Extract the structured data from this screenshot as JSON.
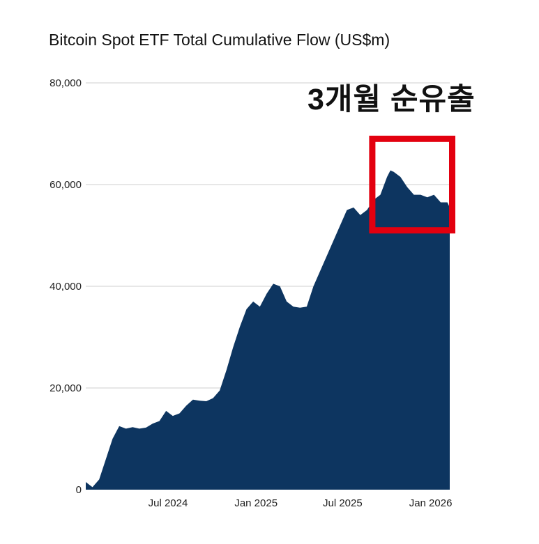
{
  "chart_data": {
    "type": "area",
    "title": "Bitcoin Spot ETF Total Cumulative Flow (US$m)",
    "annotation": "3개월 순유출",
    "xlabel": "",
    "ylabel": "",
    "ylim": [
      0,
      80000
    ],
    "yticks": [
      0,
      20000,
      40000,
      60000,
      80000
    ],
    "ytick_labels": [
      "0",
      "20,000",
      "40,000",
      "60,000",
      "80,000"
    ],
    "xtick_labels": [
      "Jul 2024",
      "Jan 2025",
      "Jul 2025",
      "Jan 2026"
    ],
    "xticks_iso": [
      "2024-07-01",
      "2025-01-01",
      "2025-07-01",
      "2026-01-01"
    ],
    "x_range": [
      "2024-01-11",
      "2026-02-10"
    ],
    "grid": true,
    "legend": "none",
    "highlight_box": {
      "from": "2025-09-01",
      "to": "2026-02-15",
      "y_from": 51000,
      "y_to": 69000
    },
    "series": [
      {
        "x": [
          "2024-01-11",
          "2024-01-25",
          "2024-02-08",
          "2024-02-22",
          "2024-03-07",
          "2024-03-21",
          "2024-04-04",
          "2024-04-18",
          "2024-05-02",
          "2024-05-16",
          "2024-05-30",
          "2024-06-13",
          "2024-06-27",
          "2024-07-11",
          "2024-07-25",
          "2024-08-08",
          "2024-08-22",
          "2024-09-05",
          "2024-09-19",
          "2024-10-03",
          "2024-10-17",
          "2024-10-31",
          "2024-11-14",
          "2024-11-28",
          "2024-12-12",
          "2024-12-26",
          "2025-01-09",
          "2025-01-23",
          "2025-02-06",
          "2025-02-20",
          "2025-03-06",
          "2025-03-20",
          "2025-04-03",
          "2025-04-17",
          "2025-05-01",
          "2025-05-15",
          "2025-05-29",
          "2025-06-12",
          "2025-06-26",
          "2025-07-10",
          "2025-07-24",
          "2025-08-07",
          "2025-08-21",
          "2025-09-04",
          "2025-09-18",
          "2025-10-02",
          "2025-10-09",
          "2025-10-16",
          "2025-10-30",
          "2025-11-13",
          "2025-11-27",
          "2025-12-11",
          "2025-12-25",
          "2026-01-08",
          "2026-01-22",
          "2026-02-05",
          "2026-02-10"
        ],
        "values": [
          1500,
          500,
          2000,
          6000,
          10000,
          12500,
          12000,
          12300,
          12000,
          12200,
          13000,
          13500,
          15500,
          14500,
          15000,
          16500,
          17700,
          17500,
          17400,
          18000,
          19500,
          23500,
          28000,
          32000,
          35500,
          37000,
          36000,
          38500,
          40500,
          40000,
          37000,
          36000,
          35800,
          36000,
          40000,
          43000,
          46000,
          49000,
          52000,
          55000,
          55500,
          54000,
          55000,
          57000,
          58000,
          61500,
          62800,
          62500,
          61500,
          59500,
          58000,
          58000,
          57500,
          58000,
          56500,
          56500,
          55500
        ]
      }
    ],
    "colors": {
      "area": "#0d3560",
      "grid": "#cfcfcf",
      "box": "#e3000f",
      "text": "#222222"
    }
  }
}
